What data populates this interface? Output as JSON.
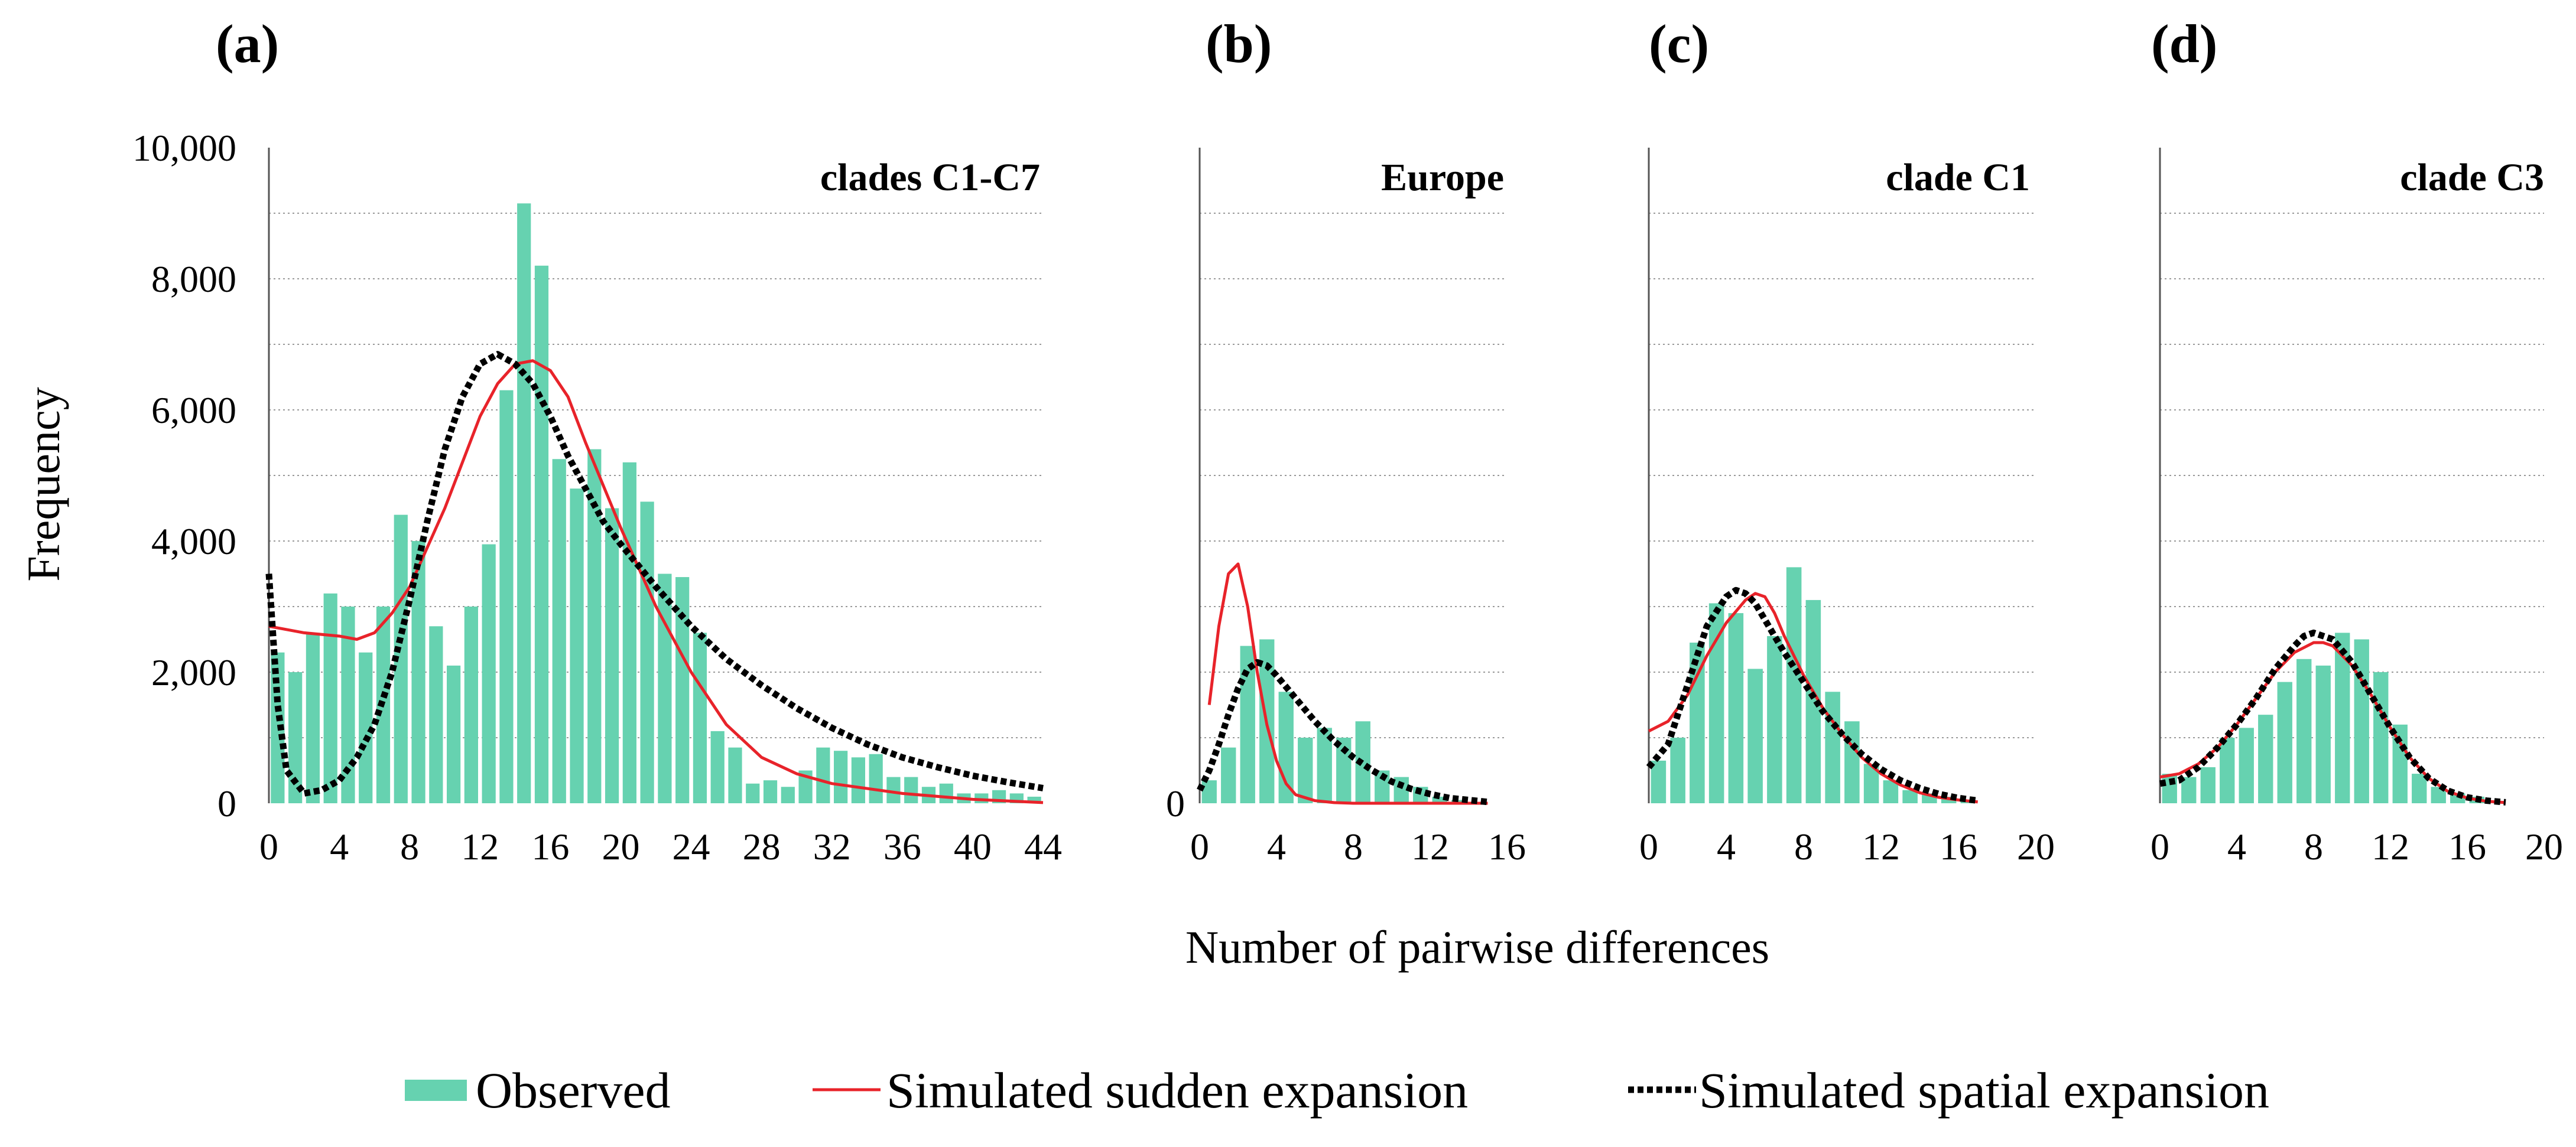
{
  "figure": {
    "ylabel": "Frequency",
    "xlabel": "Number of pairwise differences",
    "legend": {
      "observed": "Observed",
      "sudden": "Simulated sudden expansion",
      "spatial": "Simulated spatial expansion"
    }
  },
  "colors": {
    "observed": "#66D2B0",
    "sudden": "#E8232A",
    "spatial": "#000000",
    "grid": "#9a9a9a"
  },
  "chart_data": [
    {
      "type": "bar",
      "panel": "(a)",
      "title": "clades C1-C7",
      "xlim": [
        0,
        44
      ],
      "ylim": [
        0,
        10000
      ],
      "xticks": [
        "0",
        "4",
        "8",
        "12",
        "16",
        "20",
        "24",
        "28",
        "32",
        "36",
        "40",
        "44"
      ],
      "yticks": [
        "0",
        "2,000",
        "4,000",
        "6,000",
        "8,000",
        "10,000"
      ],
      "observed": {
        "x": [
          0,
          1,
          2,
          3,
          4,
          5,
          6,
          7,
          8,
          9,
          10,
          11,
          12,
          13,
          14,
          15,
          16,
          17,
          18,
          19,
          20,
          21,
          22,
          23,
          24,
          25,
          26,
          27,
          28,
          29,
          30,
          31,
          32,
          33,
          34,
          35,
          36,
          37,
          38,
          39,
          40,
          41,
          42,
          43
        ],
        "y": [
          2300,
          2000,
          2600,
          3200,
          3000,
          2300,
          3000,
          4400,
          4000,
          2700,
          2100,
          3000,
          3950,
          6300,
          9150,
          8200,
          5250,
          4800,
          5400,
          4500,
          5200,
          4600,
          3500,
          3450,
          2600,
          1100,
          850,
          300,
          350,
          250,
          500,
          850,
          800,
          700,
          750,
          400,
          400,
          250,
          300,
          150,
          150,
          200,
          150,
          100
        ]
      },
      "sudden": {
        "x": [
          0,
          2,
          4,
          5,
          6,
          7,
          8,
          9,
          10,
          11,
          12,
          13,
          14,
          15,
          16,
          17,
          18,
          20,
          22,
          24,
          26,
          28,
          30,
          32,
          36,
          40,
          44
        ],
        "y": [
          2700,
          2600,
          2550,
          2500,
          2600,
          2900,
          3300,
          3900,
          4500,
          5200,
          5900,
          6400,
          6700,
          6750,
          6600,
          6200,
          5500,
          4200,
          3000,
          2000,
          1200,
          700,
          450,
          300,
          150,
          60,
          10
        ]
      },
      "spatial": {
        "x": [
          0,
          0.5,
          1,
          2,
          3,
          4,
          5,
          6,
          7,
          8,
          9,
          10,
          11,
          12,
          13,
          14,
          15,
          16,
          17,
          18,
          19,
          20,
          22,
          24,
          26,
          28,
          30,
          32,
          34,
          36,
          38,
          40,
          42,
          44
        ],
        "y": [
          3500,
          1500,
          500,
          150,
          200,
          350,
          700,
          1200,
          2000,
          3100,
          4300,
          5400,
          6200,
          6700,
          6850,
          6700,
          6400,
          5900,
          5300,
          4800,
          4300,
          3950,
          3300,
          2700,
          2200,
          1800,
          1450,
          1150,
          900,
          700,
          550,
          420,
          320,
          230
        ]
      }
    },
    {
      "type": "bar",
      "panel": "(b)",
      "title": "Europe",
      "xlim": [
        0,
        16
      ],
      "ylim": [
        0,
        10000
      ],
      "xticks": [
        "0",
        "4",
        "8",
        "12",
        "16"
      ],
      "yticks": [
        "0"
      ],
      "observed": {
        "x": [
          0,
          1,
          2,
          3,
          4,
          5,
          6,
          7,
          8,
          9,
          10,
          11,
          12,
          13
        ],
        "y": [
          350,
          850,
          2400,
          2500,
          1700,
          1000,
          1150,
          1000,
          1250,
          500,
          400,
          250,
          100,
          50
        ]
      },
      "sudden": {
        "x": [
          0.5,
          1,
          1.5,
          2,
          2.5,
          3,
          3.5,
          4,
          4.5,
          5,
          6,
          7,
          8,
          10,
          12,
          15
        ],
        "y": [
          1500,
          2700,
          3500,
          3650,
          3000,
          2000,
          1200,
          650,
          300,
          130,
          40,
          10,
          0,
          0,
          0,
          0
        ]
      },
      "spatial": {
        "x": [
          0,
          0.5,
          1,
          1.5,
          2,
          2.5,
          3,
          3.5,
          4,
          5,
          6,
          7,
          8,
          9,
          10,
          11,
          12,
          13,
          14,
          15
        ],
        "y": [
          200,
          500,
          900,
          1350,
          1750,
          2050,
          2150,
          2100,
          1950,
          1600,
          1250,
          950,
          700,
          500,
          330,
          220,
          140,
          80,
          50,
          20
        ]
      }
    },
    {
      "type": "bar",
      "panel": "(c)",
      "title": "clade C1",
      "xlim": [
        0,
        20
      ],
      "ylim": [
        0,
        10000
      ],
      "xticks": [
        "0",
        "4",
        "8",
        "12",
        "16",
        "20"
      ],
      "yticks": [],
      "observed": {
        "x": [
          0,
          1,
          2,
          3,
          4,
          5,
          6,
          7,
          8,
          9,
          10,
          11,
          12,
          13,
          14,
          15,
          16
        ],
        "y": [
          650,
          1000,
          2450,
          3050,
          2900,
          2050,
          2550,
          3600,
          3100,
          1700,
          1250,
          600,
          350,
          200,
          150,
          100,
          50
        ]
      },
      "sudden": {
        "x": [
          0,
          1,
          2,
          3,
          4,
          5,
          5.5,
          6,
          6.5,
          7,
          8,
          9,
          10,
          11,
          12,
          13,
          14,
          15,
          16,
          17
        ],
        "y": [
          1100,
          1250,
          1650,
          2250,
          2750,
          3100,
          3200,
          3150,
          2900,
          2550,
          1950,
          1450,
          1050,
          700,
          450,
          280,
          160,
          90,
          50,
          20
        ]
      },
      "spatial": {
        "x": [
          0,
          1,
          2,
          3,
          4,
          4.5,
          5,
          5.5,
          6,
          7,
          8,
          9,
          10,
          11,
          12,
          13,
          14,
          15,
          16,
          17
        ],
        "y": [
          550,
          900,
          1800,
          2700,
          3150,
          3250,
          3200,
          3050,
          2800,
          2300,
          1850,
          1400,
          1050,
          750,
          520,
          350,
          230,
          140,
          80,
          40
        ]
      }
    },
    {
      "type": "bar",
      "panel": "(d)",
      "title": "clade C3",
      "xlim": [
        0,
        20
      ],
      "ylim": [
        0,
        10000
      ],
      "xticks": [
        "0",
        "4",
        "8",
        "12",
        "16",
        "20"
      ],
      "yticks": [],
      "observed": {
        "x": [
          0,
          1,
          2,
          3,
          4,
          5,
          6,
          7,
          8,
          9,
          10,
          11,
          12,
          13,
          14,
          15,
          16
        ],
        "y": [
          450,
          400,
          550,
          1000,
          1150,
          1350,
          1850,
          2200,
          2100,
          2600,
          2500,
          2000,
          1200,
          450,
          250,
          150,
          100
        ]
      },
      "sudden": {
        "x": [
          0,
          1,
          2,
          3,
          4,
          5,
          6,
          7,
          8,
          8.5,
          9,
          10,
          11,
          12,
          13,
          14,
          15,
          16,
          17,
          18
        ],
        "y": [
          400,
          450,
          600,
          850,
          1200,
          1600,
          2000,
          2300,
          2450,
          2450,
          2400,
          2100,
          1650,
          1150,
          700,
          380,
          180,
          80,
          30,
          10
        ]
      },
      "spatial": {
        "x": [
          0,
          1,
          2,
          3,
          4,
          5,
          6,
          7,
          7.5,
          8,
          9,
          10,
          11,
          12,
          13,
          14,
          15,
          16,
          17,
          18
        ],
        "y": [
          300,
          350,
          550,
          850,
          1200,
          1600,
          2050,
          2400,
          2550,
          2600,
          2500,
          2150,
          1650,
          1150,
          700,
          380,
          190,
          90,
          40,
          15
        ]
      }
    }
  ]
}
